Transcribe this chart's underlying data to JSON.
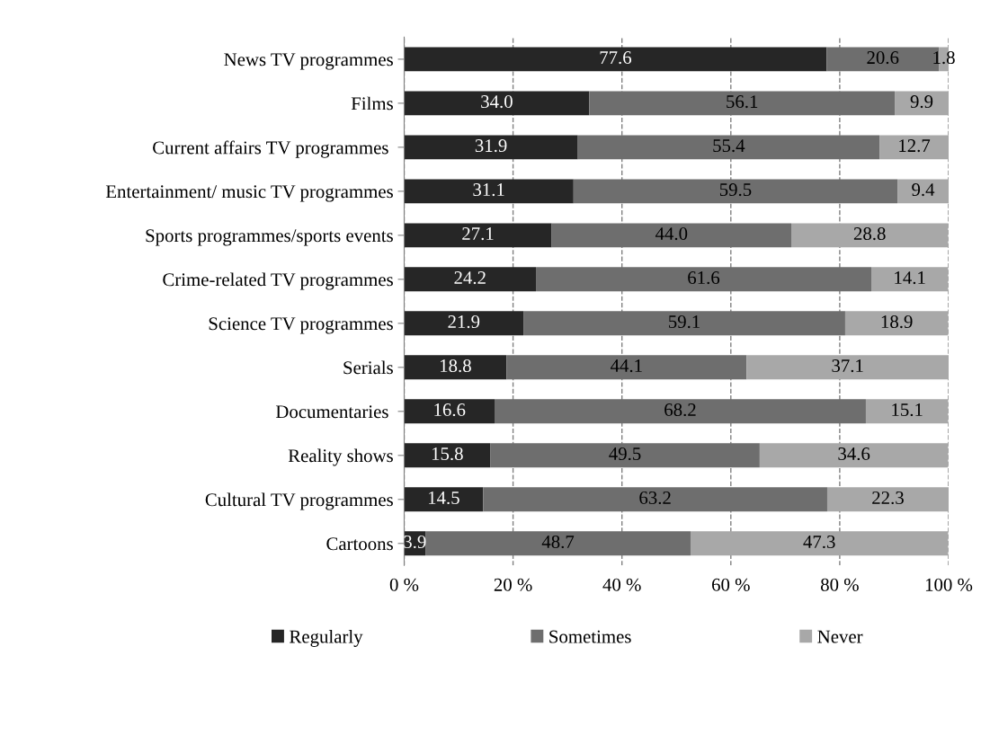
{
  "chart_data": {
    "type": "bar",
    "orientation": "horizontal",
    "stacked": true,
    "categories": [
      "News TV programmes",
      "Films",
      "Current affairs TV programmes ",
      "Entertainment/ music TV programmes",
      "Sports programmes/sports events",
      "Crime-related TV programmes",
      "Science TV programmes",
      "Serials",
      "Documentaries ",
      "Reality shows",
      "Cultural TV programmes",
      "Cartoons"
    ],
    "series": [
      {
        "name": "Regularly",
        "color": "#262626",
        "values": [
          77.6,
          34.0,
          31.9,
          31.1,
          27.1,
          24.2,
          21.9,
          18.8,
          16.6,
          15.8,
          14.5,
          3.9
        ],
        "value_labels": [
          "77.6",
          "34.0",
          "31.9",
          "31.1",
          "27.1",
          "24.2",
          "21.9",
          "18.8",
          "16.6",
          "15.8",
          "14.5",
          "3.9"
        ]
      },
      {
        "name": "Sometimes",
        "color": "#6e6e6e",
        "values": [
          20.6,
          56.1,
          55.4,
          59.5,
          44.0,
          61.6,
          59.1,
          44.1,
          68.2,
          49.5,
          63.2,
          48.7
        ],
        "value_labels": [
          "20.6",
          "56.1",
          "55.4",
          "59.5",
          "44.0",
          "61.6",
          "59.1",
          "44.1",
          "68.2",
          "49.5",
          "63.2",
          "48.7"
        ]
      },
      {
        "name": "Never",
        "color": "#a8a8a8",
        "values": [
          1.8,
          9.9,
          12.7,
          9.4,
          28.8,
          14.1,
          18.9,
          37.1,
          15.1,
          34.6,
          22.3,
          47.3
        ],
        "value_labels": [
          "1.8",
          "9.9",
          "12.7",
          "9.4",
          "28.8",
          "14.1",
          "18.9",
          "37.1",
          "15.1",
          "34.6",
          "22.3",
          "47.3"
        ]
      }
    ],
    "xlim": [
      0,
      100
    ],
    "xticks": [
      {
        "value": 0,
        "label": "0 %"
      },
      {
        "value": 20,
        "label": "20 %"
      },
      {
        "value": 40,
        "label": "40 %"
      },
      {
        "value": 60,
        "label": "60 %"
      },
      {
        "value": 80,
        "label": "80 %"
      },
      {
        "value": 100,
        "label": "100 %"
      }
    ],
    "grid": "x",
    "legend": "bottom"
  }
}
